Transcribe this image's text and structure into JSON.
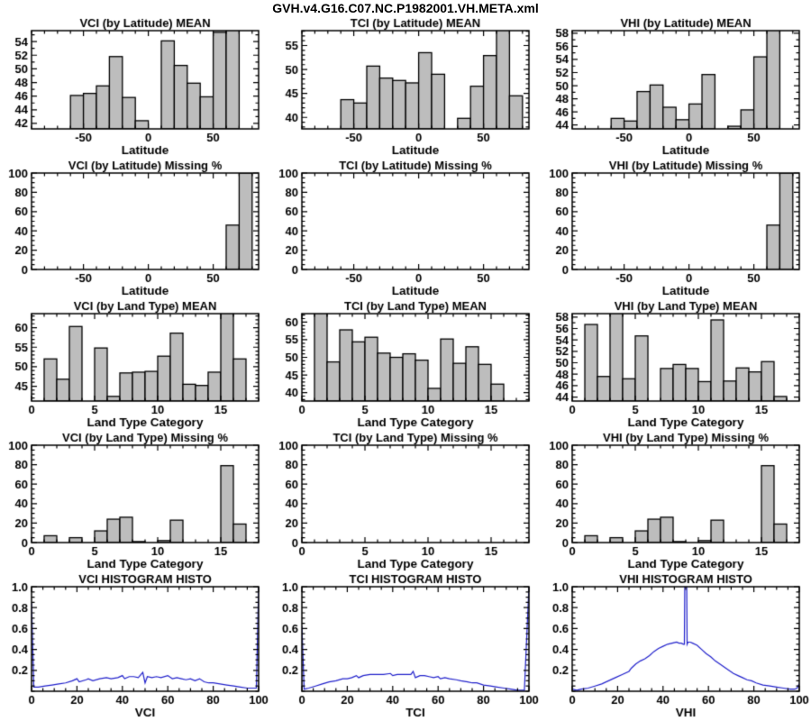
{
  "page_title": "GVH.v4.G16.C07.NC.P1982001.VH.META.xml",
  "colors": {
    "background": "#ffffff",
    "axis": "#000000",
    "text": "#000000",
    "bar_fill": "#bdbdbd",
    "bar_stroke": "#000000",
    "line": "#2222cc"
  },
  "chart_data": [
    {
      "id": "vci-lat-mean",
      "type": "bar",
      "title": "VCI (by Latitude) MEAN",
      "xlabel": "Latitude",
      "ylabel": "",
      "bins_start": -60,
      "bin_width": 10,
      "values": [
        46.1,
        46.4,
        47.5,
        51.8,
        45.8,
        42.4,
        null,
        54.1,
        50.5,
        47.9,
        45.9,
        55.35,
        55.9
      ],
      "xlim": [
        -90,
        85
      ],
      "ylim": [
        41.2,
        55.6
      ],
      "xticks": [
        -50,
        0,
        50
      ],
      "yticks": [
        42,
        44,
        46,
        48,
        50,
        52,
        54
      ],
      "x_minor": 10,
      "y_minor": 1,
      "ytick_decimals": 0
    },
    {
      "id": "tci-lat-mean",
      "type": "bar",
      "title": "TCI (by Latitude) MEAN",
      "xlabel": "Latitude",
      "ylabel": "",
      "bins_start": -60,
      "bin_width": 10,
      "values": [
        43.7,
        43.0,
        50.7,
        48.2,
        47.7,
        47.2,
        53.5,
        49.0,
        null,
        39.8,
        46.5,
        52.9,
        58.4,
        44.5
      ],
      "xlim": [
        -90,
        85
      ],
      "ylim": [
        37.6,
        58.1
      ],
      "xticks": [
        -50,
        0,
        50
      ],
      "yticks": [
        40,
        45,
        50,
        55
      ],
      "x_minor": 10,
      "y_minor": 1,
      "ytick_decimals": 0
    },
    {
      "id": "vhi-lat-mean",
      "type": "bar",
      "title": "VHI (by Latitude) MEAN",
      "xlabel": "Latitude",
      "ylabel": "",
      "bins_start": -60,
      "bin_width": 10,
      "values": [
        45.0,
        44.6,
        49.1,
        50.1,
        46.7,
        44.8,
        47.2,
        51.7,
        null,
        43.8,
        46.3,
        54.4,
        58.8
      ],
      "xlim": [
        -90,
        85
      ],
      "ylim": [
        43.4,
        58.4
      ],
      "xticks": [
        -50,
        0,
        50
      ],
      "yticks": [
        44,
        46,
        48,
        50,
        52,
        54,
        56,
        58
      ],
      "x_minor": 10,
      "y_minor": 1,
      "ytick_decimals": 0
    },
    {
      "id": "vci-lat-missing",
      "type": "bar",
      "title": "VCI (by Latitude) Missing %",
      "xlabel": "Latitude",
      "ylabel": "",
      "bins_start": -60,
      "bin_width": 10,
      "values": [
        0,
        0,
        0,
        0,
        0,
        0,
        0,
        0,
        0,
        0,
        0,
        0,
        46,
        100
      ],
      "xlim": [
        -90,
        85
      ],
      "ylim": [
        0,
        100
      ],
      "xticks": [
        -50,
        0,
        50
      ],
      "yticks": [
        0,
        20,
        40,
        60,
        80,
        100
      ],
      "x_minor": 10,
      "y_minor": 5,
      "ytick_decimals": 0
    },
    {
      "id": "tci-lat-missing",
      "type": "bar",
      "title": "TCI (by Latitude) Missing %",
      "xlabel": "Latitude",
      "ylabel": "",
      "bins_start": -60,
      "bin_width": 10,
      "values": [
        0,
        0,
        0,
        0,
        0,
        0,
        0,
        0,
        0,
        0,
        0,
        0,
        0,
        0
      ],
      "xlim": [
        -90,
        85
      ],
      "ylim": [
        0,
        100
      ],
      "xticks": [
        -50,
        0,
        50
      ],
      "yticks": [
        0,
        20,
        40,
        60,
        80,
        100
      ],
      "x_minor": 10,
      "y_minor": 5,
      "ytick_decimals": 0
    },
    {
      "id": "vhi-lat-missing",
      "type": "bar",
      "title": "VHI (by Latitude) Missing %",
      "xlabel": "Latitude",
      "ylabel": "",
      "bins_start": -60,
      "bin_width": 10,
      "values": [
        0,
        0,
        0,
        0,
        0,
        0,
        0,
        0,
        0,
        0,
        0,
        0,
        46,
        100
      ],
      "xlim": [
        -90,
        85
      ],
      "ylim": [
        0,
        100
      ],
      "xticks": [
        -50,
        0,
        50
      ],
      "yticks": [
        0,
        20,
        40,
        60,
        80,
        100
      ],
      "x_minor": 10,
      "y_minor": 5,
      "ytick_decimals": 0
    },
    {
      "id": "vci-land-mean",
      "type": "bar",
      "title": "VCI (by Land Type) MEAN",
      "xlabel": "Land Type Category",
      "ylabel": "",
      "bins_start": 1,
      "bin_width": 1,
      "values": [
        52.0,
        46.8,
        60.3,
        null,
        54.8,
        42.4,
        48.4,
        48.6,
        48.8,
        52.7,
        58.6,
        45.5,
        45.2,
        48.6,
        64.8,
        52.0
      ],
      "xlim": [
        0,
        18
      ],
      "ylim": [
        41.2,
        63.6
      ],
      "xticks": [
        0,
        5,
        10,
        15
      ],
      "yticks": [
        45,
        50,
        55,
        60
      ],
      "x_minor": 1,
      "y_minor": 1,
      "ytick_decimals": 0
    },
    {
      "id": "tci-land-mean",
      "type": "bar",
      "title": "TCI (by Land Type) MEAN",
      "xlabel": "Land Type Category",
      "ylabel": "",
      "bins_start": 1,
      "bin_width": 1,
      "values": [
        63.2,
        48.7,
        57.8,
        54.4,
        55.7,
        51.2,
        50.0,
        51.0,
        49.2,
        41.2,
        55.2,
        48.3,
        53.0,
        48.0,
        42.4,
        null
      ],
      "xlim": [
        0,
        18
      ],
      "ylim": [
        37.6,
        62.4
      ],
      "xticks": [
        0,
        5,
        10,
        15
      ],
      "yticks": [
        40,
        45,
        50,
        55,
        60
      ],
      "x_minor": 1,
      "y_minor": 1,
      "ytick_decimals": 0
    },
    {
      "id": "vhi-land-mean",
      "type": "bar",
      "title": "VHI (by Land Type) MEAN",
      "xlabel": "Land Type Category",
      "ylabel": "",
      "bins_start": 1,
      "bin_width": 1,
      "values": [
        56.7,
        47.6,
        59.0,
        47.2,
        54.7,
        null,
        49.0,
        49.7,
        49.0,
        46.7,
        57.5,
        46.8,
        49.1,
        48.4,
        50.2,
        44.1
      ],
      "xlim": [
        0,
        18
      ],
      "ylim": [
        43.3,
        58.6
      ],
      "xticks": [
        0,
        5,
        10,
        15
      ],
      "yticks": [
        44,
        46,
        48,
        50,
        52,
        54,
        56,
        58
      ],
      "x_minor": 1,
      "y_minor": 1,
      "ytick_decimals": 0
    },
    {
      "id": "vci-land-missing",
      "type": "bar",
      "title": "VCI (by Land Type) Missing %",
      "xlabel": "Land Type Category",
      "ylabel": "",
      "bins_start": 1,
      "bin_width": 1,
      "values": [
        7,
        0,
        5,
        0,
        12,
        24,
        26,
        1,
        0,
        2,
        23,
        0,
        0,
        0,
        79,
        19
      ],
      "xlim": [
        0,
        18
      ],
      "ylim": [
        0,
        100
      ],
      "xticks": [
        0,
        5,
        10,
        15
      ],
      "yticks": [
        0,
        20,
        40,
        60,
        80,
        100
      ],
      "x_minor": 1,
      "y_minor": 5,
      "ytick_decimals": 0
    },
    {
      "id": "tci-land-missing",
      "type": "bar",
      "title": "TCI (by Land Type) Missing %",
      "xlabel": "Land Type Category",
      "ylabel": "",
      "bins_start": 1,
      "bin_width": 1,
      "values": [
        0,
        0,
        0,
        0,
        0,
        0,
        0,
        0,
        0,
        0,
        0,
        0,
        0,
        0,
        0,
        0
      ],
      "xlim": [
        0,
        18
      ],
      "ylim": [
        0,
        100
      ],
      "xticks": [
        0,
        5,
        10,
        15
      ],
      "yticks": [
        0,
        20,
        40,
        60,
        80,
        100
      ],
      "x_minor": 1,
      "y_minor": 5,
      "ytick_decimals": 0
    },
    {
      "id": "vhi-land-missing",
      "type": "bar",
      "title": "VHI (by Land Type) Missing %",
      "xlabel": "Land Type Category",
      "ylabel": "",
      "bins_start": 1,
      "bin_width": 1,
      "values": [
        7,
        0,
        5,
        0,
        12,
        24,
        26,
        1,
        0,
        2,
        23,
        0,
        0,
        0,
        79,
        19
      ],
      "xlim": [
        0,
        18
      ],
      "ylim": [
        0,
        100
      ],
      "xticks": [
        0,
        5,
        10,
        15
      ],
      "yticks": [
        0,
        20,
        40,
        60,
        80,
        100
      ],
      "x_minor": 1,
      "y_minor": 5,
      "ytick_decimals": 0
    },
    {
      "id": "vci-histogram",
      "type": "line",
      "title": "VCI HISTOGRAM HISTO",
      "xlabel": "VCI",
      "ylabel": "",
      "points": [
        [
          0,
          0.85
        ],
        [
          1,
          0.04
        ],
        [
          3,
          0.04
        ],
        [
          6,
          0.05
        ],
        [
          9,
          0.06
        ],
        [
          12,
          0.07
        ],
        [
          15,
          0.08
        ],
        [
          18,
          0.1
        ],
        [
          20,
          0.12
        ],
        [
          21,
          0.09
        ],
        [
          24,
          0.11
        ],
        [
          25,
          0.12
        ],
        [
          27,
          0.1
        ],
        [
          30,
          0.12
        ],
        [
          33,
          0.13
        ],
        [
          35,
          0.12
        ],
        [
          38,
          0.13
        ],
        [
          40,
          0.15
        ],
        [
          41,
          0.12
        ],
        [
          43,
          0.14
        ],
        [
          45,
          0.14
        ],
        [
          47,
          0.13
        ],
        [
          49,
          0.18
        ],
        [
          50,
          0.08
        ],
        [
          51,
          0.14
        ],
        [
          53,
          0.13
        ],
        [
          55,
          0.14
        ],
        [
          57,
          0.13
        ],
        [
          60,
          0.15
        ],
        [
          62,
          0.12
        ],
        [
          64,
          0.13
        ],
        [
          66,
          0.12
        ],
        [
          68,
          0.11
        ],
        [
          70,
          0.12
        ],
        [
          72,
          0.1
        ],
        [
          74,
          0.12
        ],
        [
          76,
          0.09
        ],
        [
          78,
          0.08
        ],
        [
          80,
          0.08
        ],
        [
          83,
          0.07
        ],
        [
          86,
          0.06
        ],
        [
          89,
          0.05
        ],
        [
          92,
          0.04
        ],
        [
          95,
          0.03
        ],
        [
          98,
          0.03
        ],
        [
          99,
          0.03
        ],
        [
          100,
          1.0
        ]
      ],
      "xlim": [
        0,
        100
      ],
      "ylim": [
        0,
        1.0
      ],
      "xticks": [
        0,
        20,
        40,
        60,
        80,
        100
      ],
      "yticks": [
        0.2,
        0.4,
        0.6,
        0.8,
        1.0
      ],
      "x_minor": 5,
      "y_minor": 0.05,
      "ytick_decimals": 1
    },
    {
      "id": "tci-histogram",
      "type": "line",
      "title": "TCI HISTOGRAM HISTO",
      "xlabel": "TCI",
      "ylabel": "",
      "points": [
        [
          0,
          0.62
        ],
        [
          1,
          0.02
        ],
        [
          3,
          0.03
        ],
        [
          6,
          0.05
        ],
        [
          9,
          0.07
        ],
        [
          12,
          0.09
        ],
        [
          15,
          0.1
        ],
        [
          18,
          0.12
        ],
        [
          20,
          0.12
        ],
        [
          22,
          0.13
        ],
        [
          24,
          0.15
        ],
        [
          25,
          0.13
        ],
        [
          27,
          0.15
        ],
        [
          30,
          0.16
        ],
        [
          33,
          0.16
        ],
        [
          36,
          0.16
        ],
        [
          39,
          0.17
        ],
        [
          40,
          0.15
        ],
        [
          42,
          0.16
        ],
        [
          44,
          0.16
        ],
        [
          46,
          0.16
        ],
        [
          48,
          0.16
        ],
        [
          49,
          0.19
        ],
        [
          50,
          0.13
        ],
        [
          52,
          0.15
        ],
        [
          54,
          0.15
        ],
        [
          56,
          0.14
        ],
        [
          58,
          0.13
        ],
        [
          60,
          0.14
        ],
        [
          61,
          0.12
        ],
        [
          63,
          0.13
        ],
        [
          65,
          0.12
        ],
        [
          68,
          0.11
        ],
        [
          70,
          0.1
        ],
        [
          73,
          0.09
        ],
        [
          75,
          0.08
        ],
        [
          77,
          0.08
        ],
        [
          80,
          0.06
        ],
        [
          83,
          0.05
        ],
        [
          86,
          0.04
        ],
        [
          89,
          0.03
        ],
        [
          92,
          0.02
        ],
        [
          95,
          0.01
        ],
        [
          98,
          0.01
        ],
        [
          100,
          1.0
        ]
      ],
      "xlim": [
        0,
        100
      ],
      "ylim": [
        0,
        1.0
      ],
      "xticks": [
        0,
        20,
        40,
        60,
        80,
        100
      ],
      "yticks": [
        0.2,
        0.4,
        0.6,
        0.8,
        1.0
      ],
      "x_minor": 5,
      "y_minor": 0.05,
      "ytick_decimals": 1
    },
    {
      "id": "vhi-histogram",
      "type": "line",
      "title": "VHI HISTOGRAM HISTO",
      "xlabel": "VHI",
      "ylabel": "",
      "points": [
        [
          0,
          0.02
        ],
        [
          2,
          0.01
        ],
        [
          4,
          0.02
        ],
        [
          7,
          0.03
        ],
        [
          10,
          0.05
        ],
        [
          13,
          0.07
        ],
        [
          16,
          0.1
        ],
        [
          19,
          0.13
        ],
        [
          22,
          0.16
        ],
        [
          25,
          0.19
        ],
        [
          26,
          0.22
        ],
        [
          28,
          0.26
        ],
        [
          30,
          0.29
        ],
        [
          32,
          0.31
        ],
        [
          34,
          0.34
        ],
        [
          36,
          0.38
        ],
        [
          38,
          0.41
        ],
        [
          40,
          0.43
        ],
        [
          42,
          0.45
        ],
        [
          44,
          0.46
        ],
        [
          46,
          0.47
        ],
        [
          47,
          0.46
        ],
        [
          48,
          0.46
        ],
        [
          49,
          0.45
        ],
        [
          49.4,
          0.45
        ],
        [
          49.6,
          1.08
        ],
        [
          50.4,
          1.08
        ],
        [
          50.6,
          0.45
        ],
        [
          51,
          0.47
        ],
        [
          52,
          0.47
        ],
        [
          53,
          0.46
        ],
        [
          55,
          0.44
        ],
        [
          57,
          0.4
        ],
        [
          59,
          0.36
        ],
        [
          61,
          0.33
        ],
        [
          63,
          0.29
        ],
        [
          65,
          0.26
        ],
        [
          67,
          0.23
        ],
        [
          69,
          0.2
        ],
        [
          71,
          0.17
        ],
        [
          73,
          0.15
        ],
        [
          75,
          0.13
        ],
        [
          77,
          0.11
        ],
        [
          79,
          0.1
        ],
        [
          81,
          0.08
        ],
        [
          84,
          0.06
        ],
        [
          87,
          0.05
        ],
        [
          90,
          0.04
        ],
        [
          93,
          0.03
        ],
        [
          96,
          0.02
        ],
        [
          98,
          0.02
        ],
        [
          99,
          0.03
        ],
        [
          100,
          0.07
        ]
      ],
      "xlim": [
        0,
        100
      ],
      "ylim": [
        0,
        1.0
      ],
      "xticks": [
        0,
        20,
        40,
        60,
        80,
        100
      ],
      "yticks": [
        0.2,
        0.4,
        0.6,
        0.8,
        1.0
      ],
      "x_minor": 5,
      "y_minor": 0.05,
      "ytick_decimals": 1
    }
  ]
}
